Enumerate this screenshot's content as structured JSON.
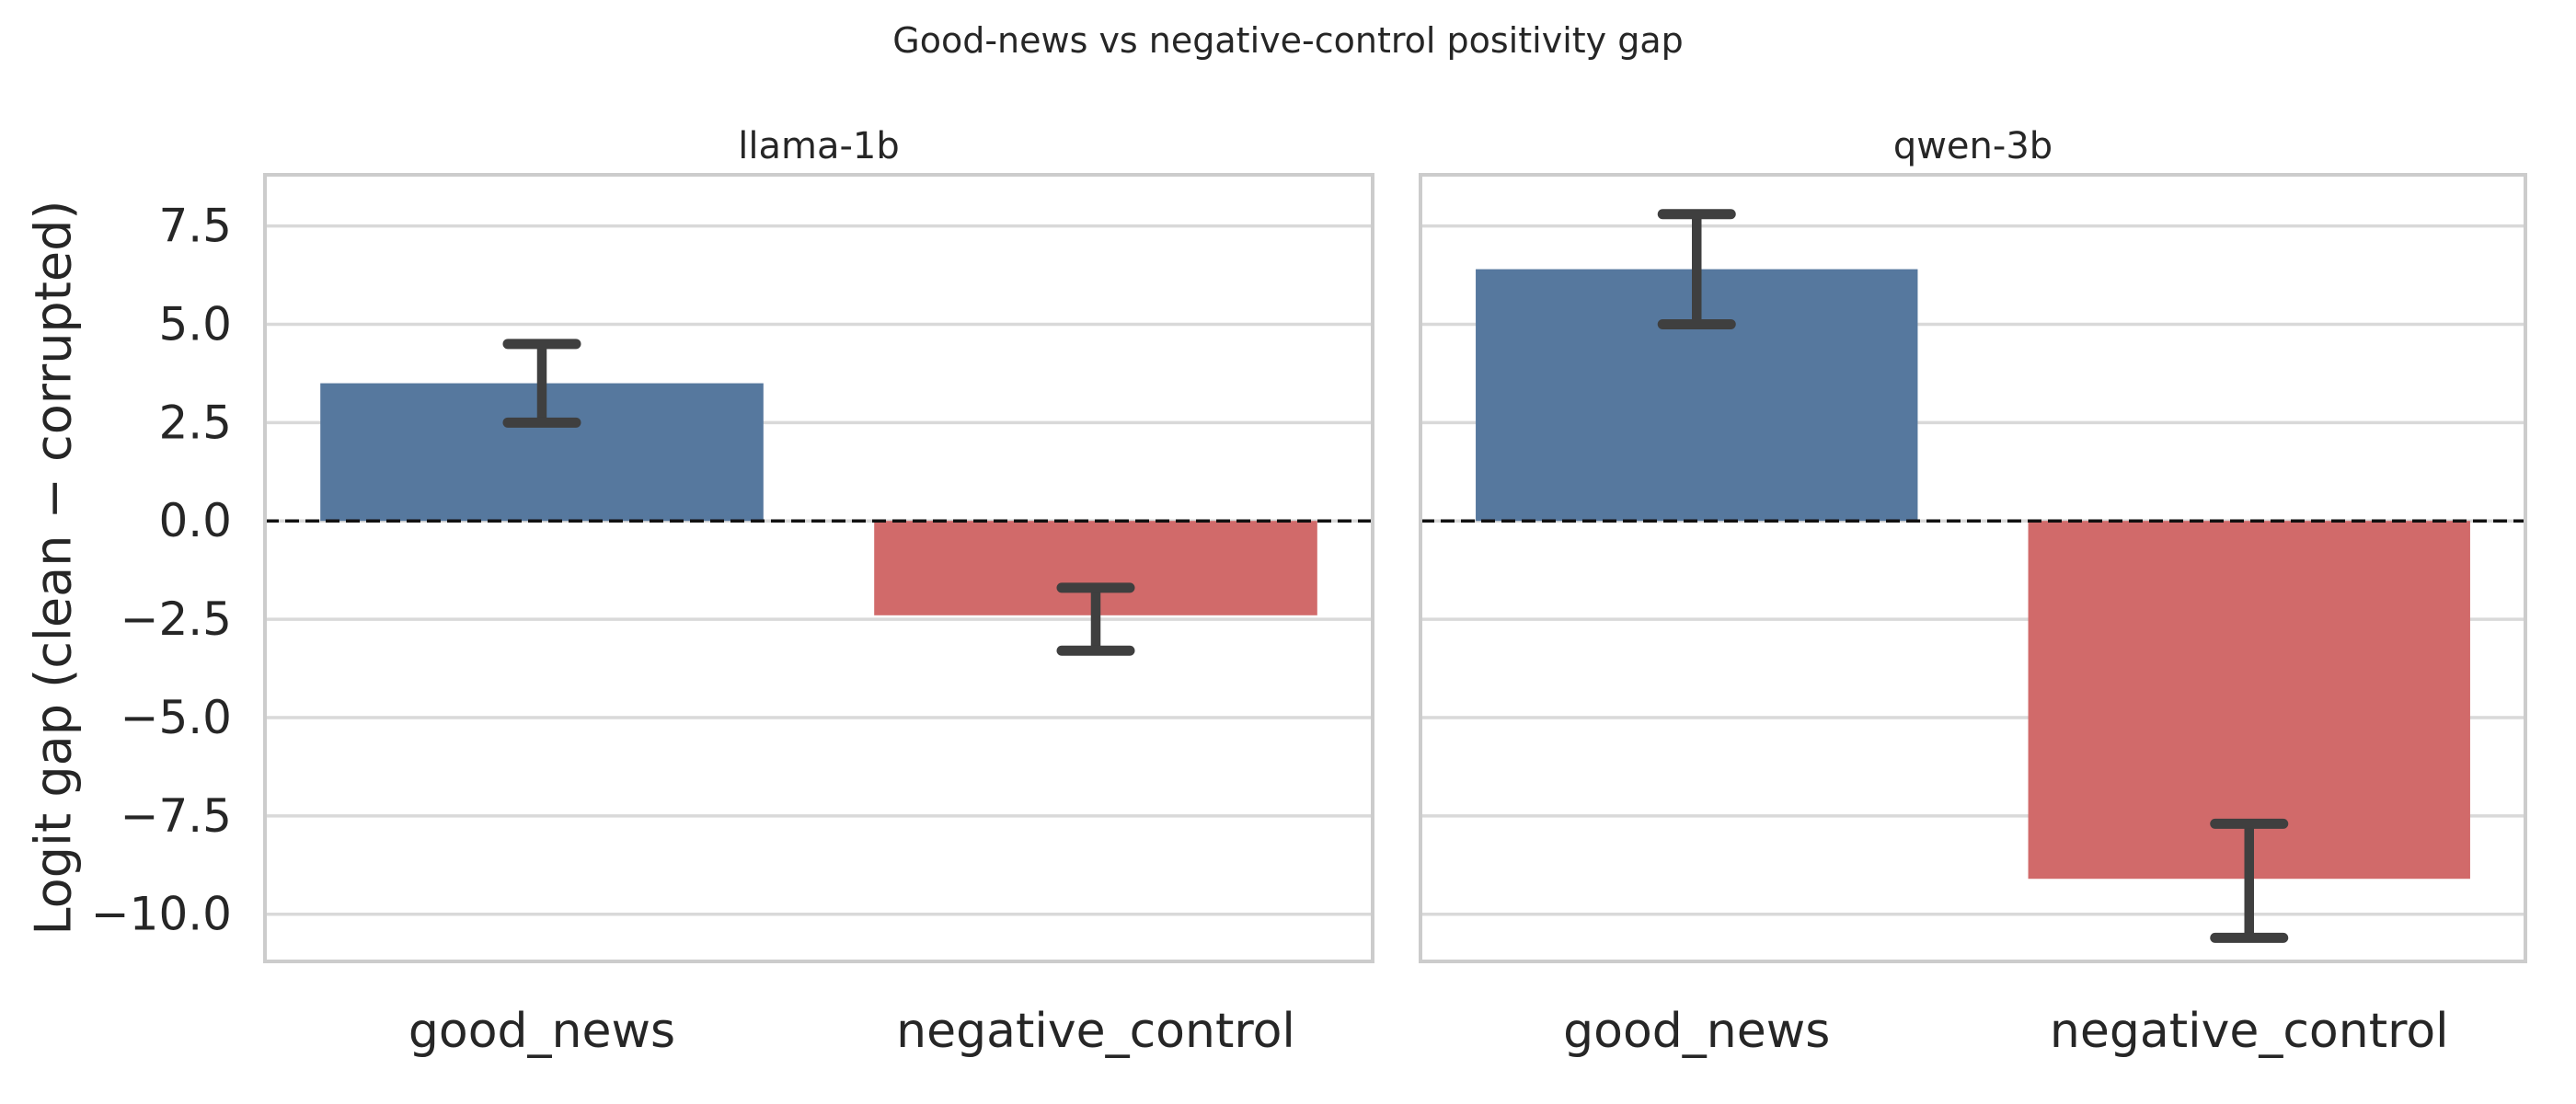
{
  "figure": {
    "title": "Good-news vs negative-control positivity gap",
    "ylabel": "Logit gap (clean − corrupted)"
  },
  "chart_data": {
    "type": "bar",
    "title": "Good-news vs negative-control positivity gap",
    "ylabel": "Logit gap (clean − corrupted)",
    "categories": [
      "good_news",
      "negative_control"
    ],
    "yticks": [
      7.5,
      5.0,
      2.5,
      0.0,
      -2.5,
      -5.0,
      -7.5,
      -10.0
    ],
    "ylim": [
      -11.2,
      8.8
    ],
    "grid": true,
    "legend": false,
    "zero_line": {
      "value": 0,
      "style": "dashed",
      "color": "#111111"
    },
    "panels": [
      {
        "title": "llama-1b",
        "series": [
          {
            "category": "good_news",
            "value": 3.5,
            "error_low": 2.5,
            "error_high": 4.5
          },
          {
            "category": "negative_control",
            "value": -2.4,
            "error_low": -3.3,
            "error_high": -1.7
          }
        ]
      },
      {
        "title": "qwen-3b",
        "series": [
          {
            "category": "good_news",
            "value": 6.4,
            "error_low": 5.0,
            "error_high": 7.8
          },
          {
            "category": "negative_control",
            "value": -9.1,
            "error_low": -10.6,
            "error_high": -7.7
          }
        ]
      }
    ],
    "colors": {
      "good_news": "#56789E",
      "negative_control": "#D16A6A",
      "error_bar": "#3F3F3F",
      "grid": "#D9D9D9",
      "axes_edge": "#CCCCCC",
      "text": "#262626"
    }
  }
}
